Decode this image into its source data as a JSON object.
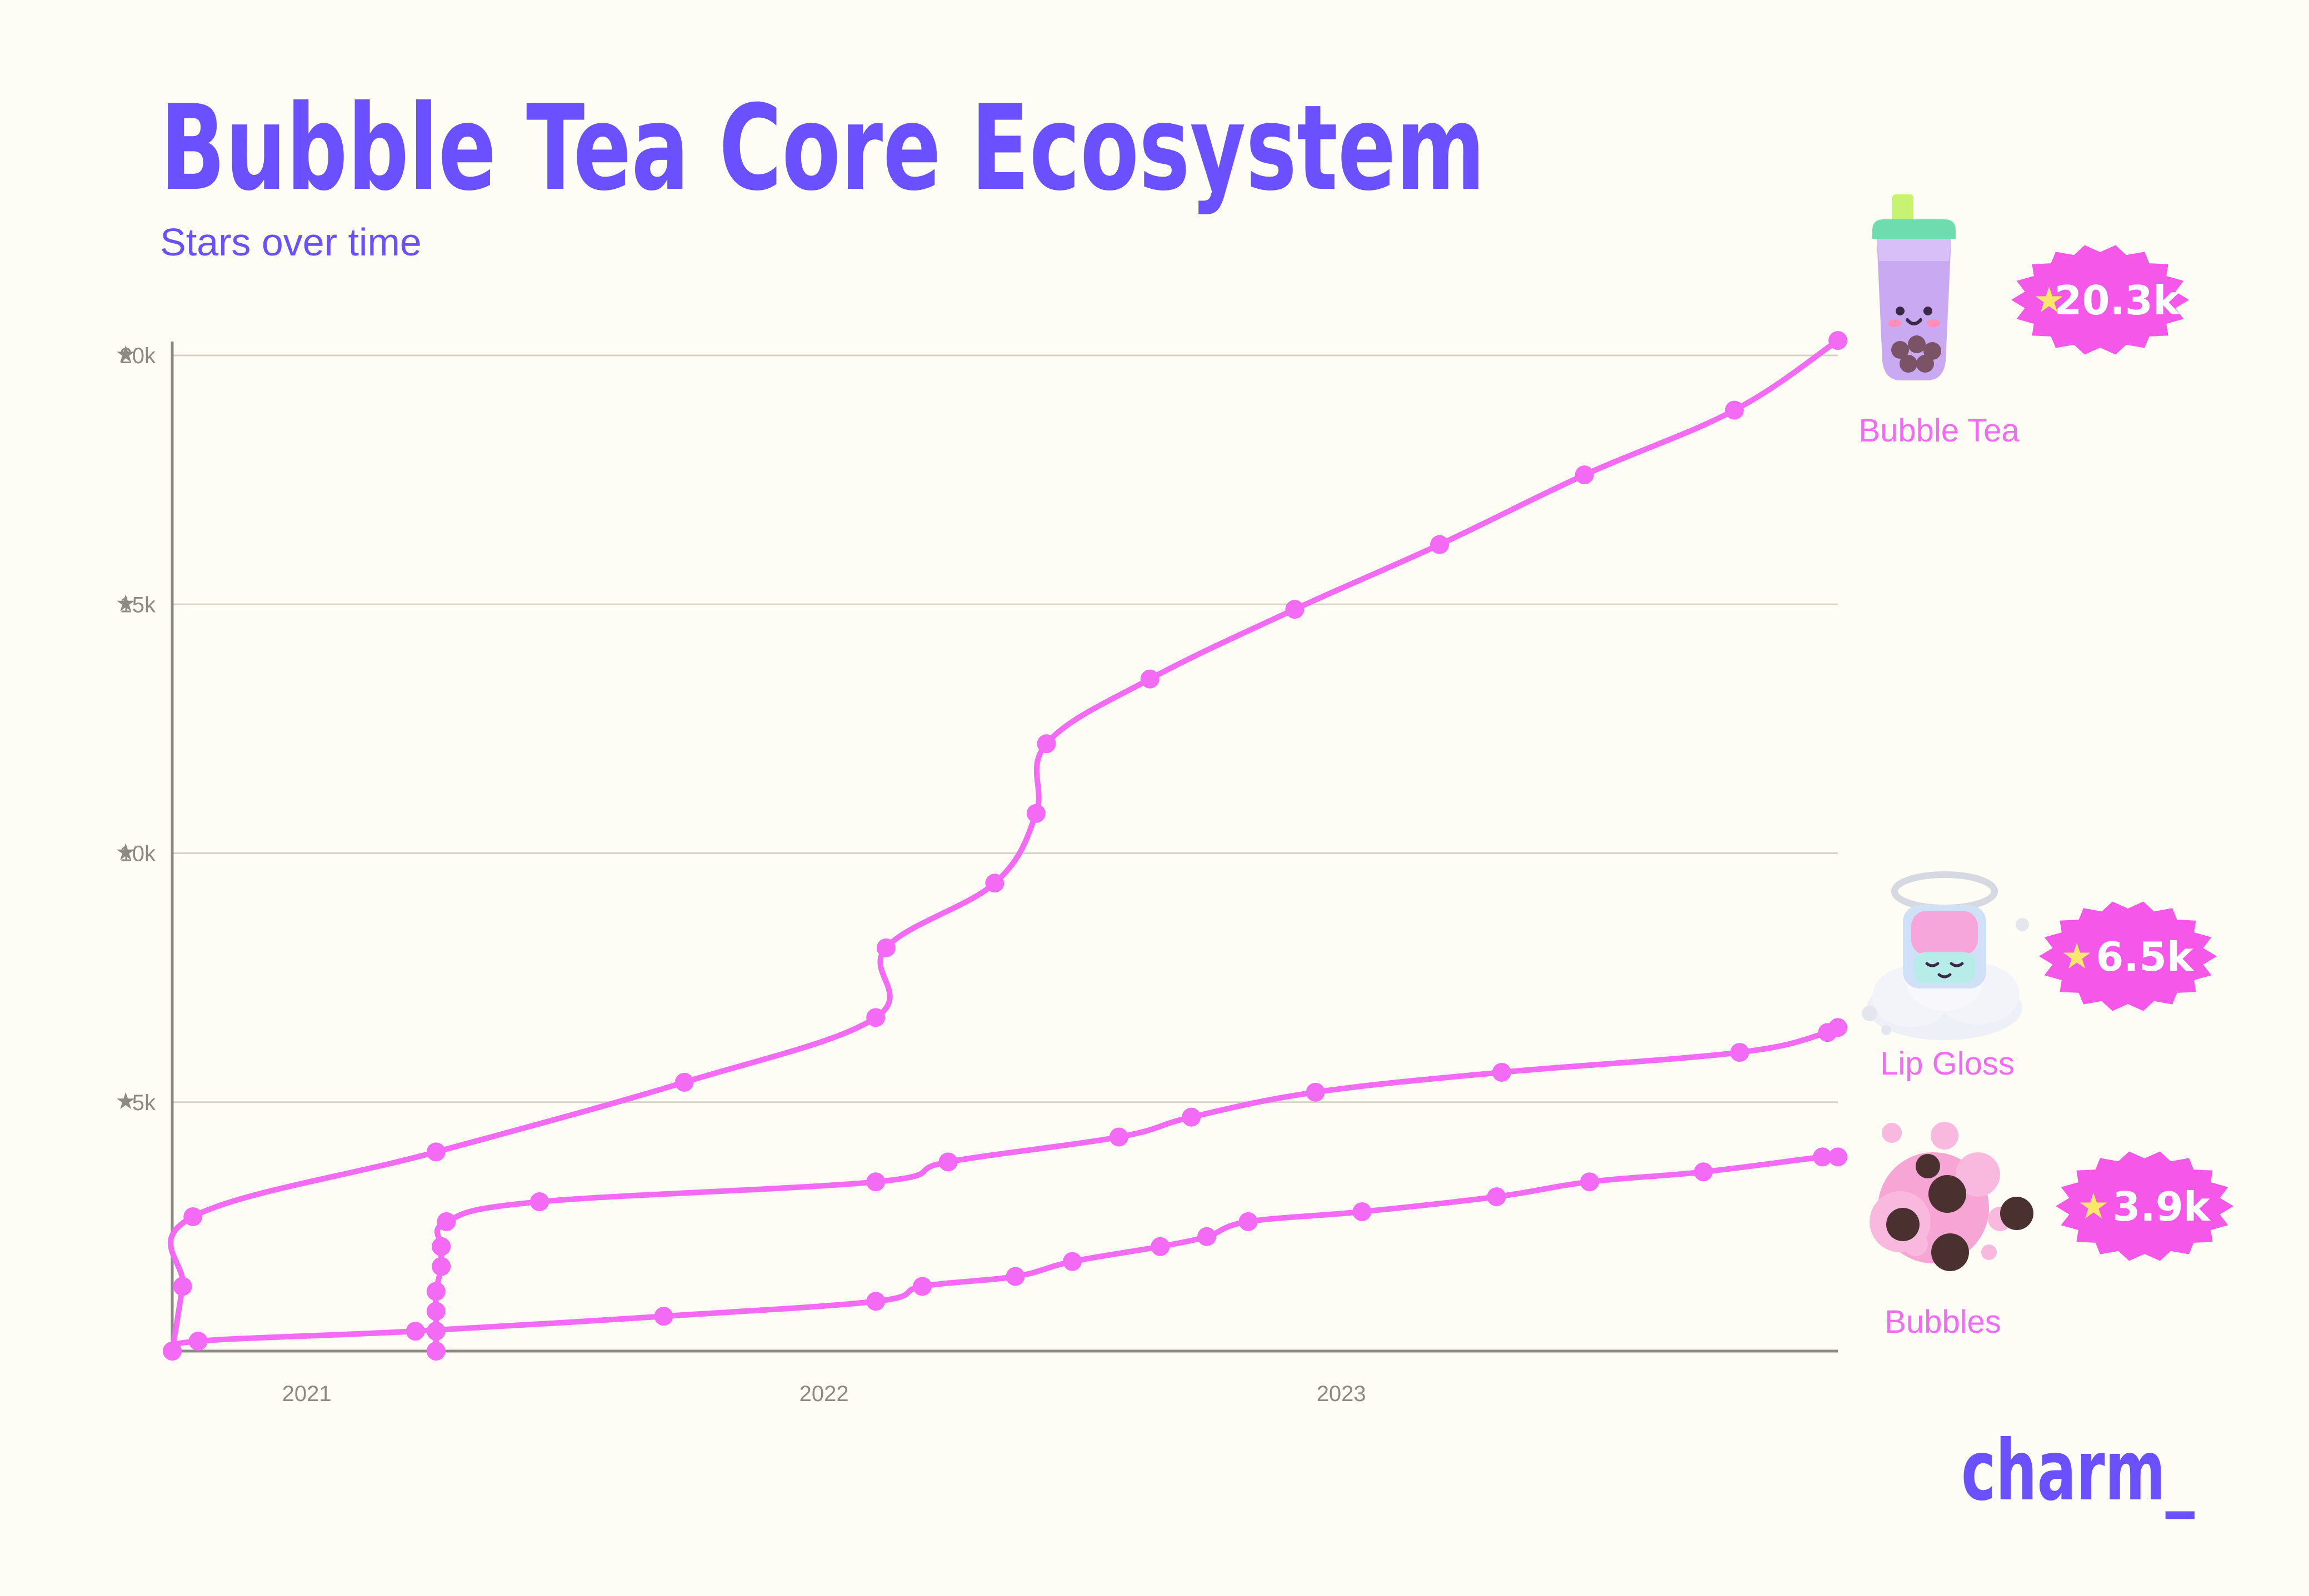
{
  "chart_data": {
    "type": "line",
    "title": "Bubble Tea Core Ecosystem",
    "subtitle": "Stars over time",
    "xlabel": "",
    "ylabel": "",
    "x_tick_labels": [
      "2021",
      "2022",
      "2023"
    ],
    "x_tick_values": [
      2021.0,
      2022.0,
      2023.0
    ],
    "xlim": [
      2020.74,
      2023.96
    ],
    "y_tick_labels": [
      "20k",
      "15k",
      "10k",
      "5k"
    ],
    "y_tick_values": [
      20000,
      15000,
      10000,
      5000
    ],
    "ylim": [
      0,
      20000
    ],
    "grid": true,
    "series": [
      {
        "name": "Bubble Tea",
        "badge": "20.3k",
        "icon": "bubble-tea-cup-icon",
        "color": "#f36bf5",
        "points": [
          [
            2020.74,
            0
          ],
          [
            2020.76,
            1300
          ],
          [
            2020.78,
            2700
          ],
          [
            2021.25,
            4000
          ],
          [
            2021.73,
            5400
          ],
          [
            2022.1,
            6700
          ],
          [
            2022.12,
            8100
          ],
          [
            2022.33,
            9400
          ],
          [
            2022.41,
            10800
          ],
          [
            2022.43,
            12200
          ],
          [
            2022.63,
            13500
          ],
          [
            2022.91,
            14900
          ],
          [
            2023.19,
            16200
          ],
          [
            2023.47,
            17600
          ],
          [
            2023.76,
            18900
          ],
          [
            2023.96,
            20300
          ]
        ]
      },
      {
        "name": "Lip Gloss",
        "badge": "6.5k",
        "icon": "lip-gloss-jar-icon",
        "color": "#f36bf5",
        "points": [
          [
            2021.25,
            0
          ],
          [
            2021.25,
            400
          ],
          [
            2021.25,
            800
          ],
          [
            2021.25,
            1200
          ],
          [
            2021.26,
            1700
          ],
          [
            2021.26,
            2100
          ],
          [
            2021.27,
            2600
          ],
          [
            2021.45,
            3000
          ],
          [
            2022.1,
            3400
          ],
          [
            2022.24,
            3800
          ],
          [
            2022.57,
            4300
          ],
          [
            2022.71,
            4700
          ],
          [
            2022.95,
            5200
          ],
          [
            2023.31,
            5600
          ],
          [
            2023.77,
            6000
          ],
          [
            2023.94,
            6400
          ],
          [
            2023.96,
            6500
          ]
        ]
      },
      {
        "name": "Bubbles",
        "badge": "3.9k",
        "icon": "bubbles-icon",
        "color": "#f36bf5",
        "points": [
          [
            2020.74,
            0
          ],
          [
            2020.79,
            200
          ],
          [
            2021.21,
            400
          ],
          [
            2021.69,
            700
          ],
          [
            2022.1,
            1000
          ],
          [
            2022.19,
            1300
          ],
          [
            2022.37,
            1500
          ],
          [
            2022.48,
            1800
          ],
          [
            2022.65,
            2100
          ],
          [
            2022.74,
            2300
          ],
          [
            2022.82,
            2600
          ],
          [
            2023.04,
            2800
          ],
          [
            2023.3,
            3100
          ],
          [
            2023.48,
            3400
          ],
          [
            2023.7,
            3600
          ],
          [
            2023.93,
            3900
          ],
          [
            2023.96,
            3900
          ]
        ]
      }
    ]
  },
  "brand": {
    "logo_text": "charm_",
    "logo_color": "#6b50ff"
  },
  "colors": {
    "title": "#6b50ff",
    "line": "#f36bf5",
    "grid": "#d5d2c8",
    "axis": "#8d8a85",
    "tick_text": "#8d8a85",
    "background": "#fdfcf5"
  }
}
